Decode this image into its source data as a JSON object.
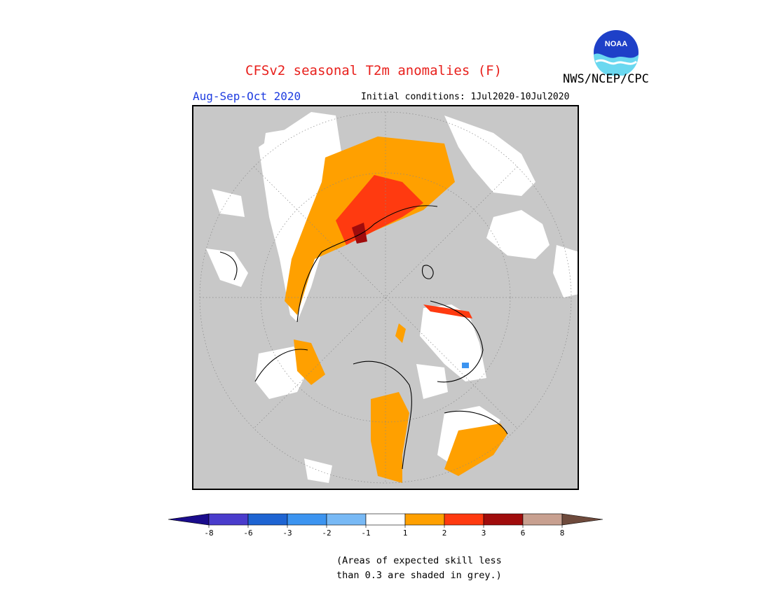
{
  "header": {
    "title": "CFSv2 seasonal T2m anomalies (F)",
    "season": "Aug-Sep-Oct 2020",
    "initial_conditions": "Initial conditions: 1Jul2020-10Jul2020",
    "agency": "NWS/NCEP/CPC",
    "logo_text": "NOAA"
  },
  "colorbar": {
    "tick_labels": [
      "-8",
      "-6",
      "-3",
      "-2",
      "-1",
      "1",
      "2",
      "3",
      "6",
      "8"
    ],
    "colors": [
      "#1a0c8c",
      "#4a3ccc",
      "#1e64d2",
      "#3c94f0",
      "#78b9f5",
      "#ffffff",
      "#ffa000",
      "#ff3a10",
      "#a00c0c",
      "#c8a090",
      "#6e4a3c"
    ]
  },
  "note": {
    "line1": "(Areas of expected skill less",
    "line2": "than 0.3 are shaded in grey.)"
  },
  "map": {
    "projection": "north polar stereographic",
    "background_color": "#c8c8c8",
    "legend_categories": [
      "grey: skill < 0.3",
      "white: -1 to 1",
      "orange: 1 to 2",
      "red: 2 to 3",
      "dark red: 3 to 6"
    ]
  }
}
